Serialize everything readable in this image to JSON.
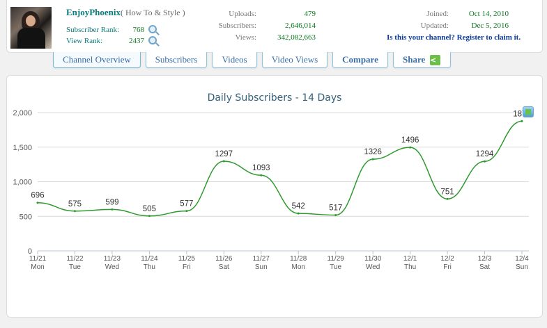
{
  "channel": {
    "name": "EnjoyPhoenix",
    "category": "( How To & Style )",
    "subscriber_rank_label": "Subscriber Rank:",
    "subscriber_rank": "768",
    "view_rank_label": "View Rank:",
    "view_rank": "2437"
  },
  "stats": {
    "uploads_label": "Uploads:",
    "uploads": "479",
    "subscribers_label": "Subscribers:",
    "subscribers": "2,646,014",
    "views_label": "Views:",
    "views": "342,082,663"
  },
  "meta": {
    "joined_label": "Joined:",
    "joined": "Oct 14, 2010",
    "updated_label": "Updated:",
    "updated": "Dec 5, 2016",
    "claim_link": "Is this your channel? Register to claim it."
  },
  "nav": {
    "tabs": [
      {
        "label": "Channel Overview"
      },
      {
        "label": "Subscribers"
      },
      {
        "label": "Videos"
      },
      {
        "label": "Video Views"
      },
      {
        "label": "Compare"
      },
      {
        "label": "Share"
      }
    ]
  },
  "colors": {
    "line": "#2e9a2e",
    "grid": "#d9d9d9",
    "title": "#33627c"
  },
  "icons": {
    "rank_search": "magnifier-icon",
    "share": "share-icon",
    "export": "chart-export-icon"
  },
  "chart_data": {
    "type": "line",
    "title": "Daily Subscribers - 14 Days",
    "xlabel": "",
    "ylabel": "",
    "ylim": [
      0,
      2000
    ],
    "yticks": [
      "0",
      "500",
      "1,000",
      "1,500",
      "2,000"
    ],
    "yticks_values": [
      0,
      500,
      1000,
      1500,
      2000
    ],
    "grid": true,
    "categories": [
      "11/21",
      "11/22",
      "11/23",
      "11/24",
      "11/25",
      "11/26",
      "11/27",
      "11/28",
      "11/29",
      "11/30",
      "12/1",
      "12/2",
      "12/3",
      "12/4"
    ],
    "weekdays": [
      "Mon",
      "Tue",
      "Wed",
      "Thu",
      "Fri",
      "Sat",
      "Sun",
      "Mon",
      "Tue",
      "Wed",
      "Thu",
      "Fri",
      "Sat",
      "Sun"
    ],
    "values": [
      696,
      575,
      599,
      505,
      577,
      1297,
      1093,
      542,
      517,
      1326,
      1496,
      751,
      1294,
      1876
    ]
  }
}
